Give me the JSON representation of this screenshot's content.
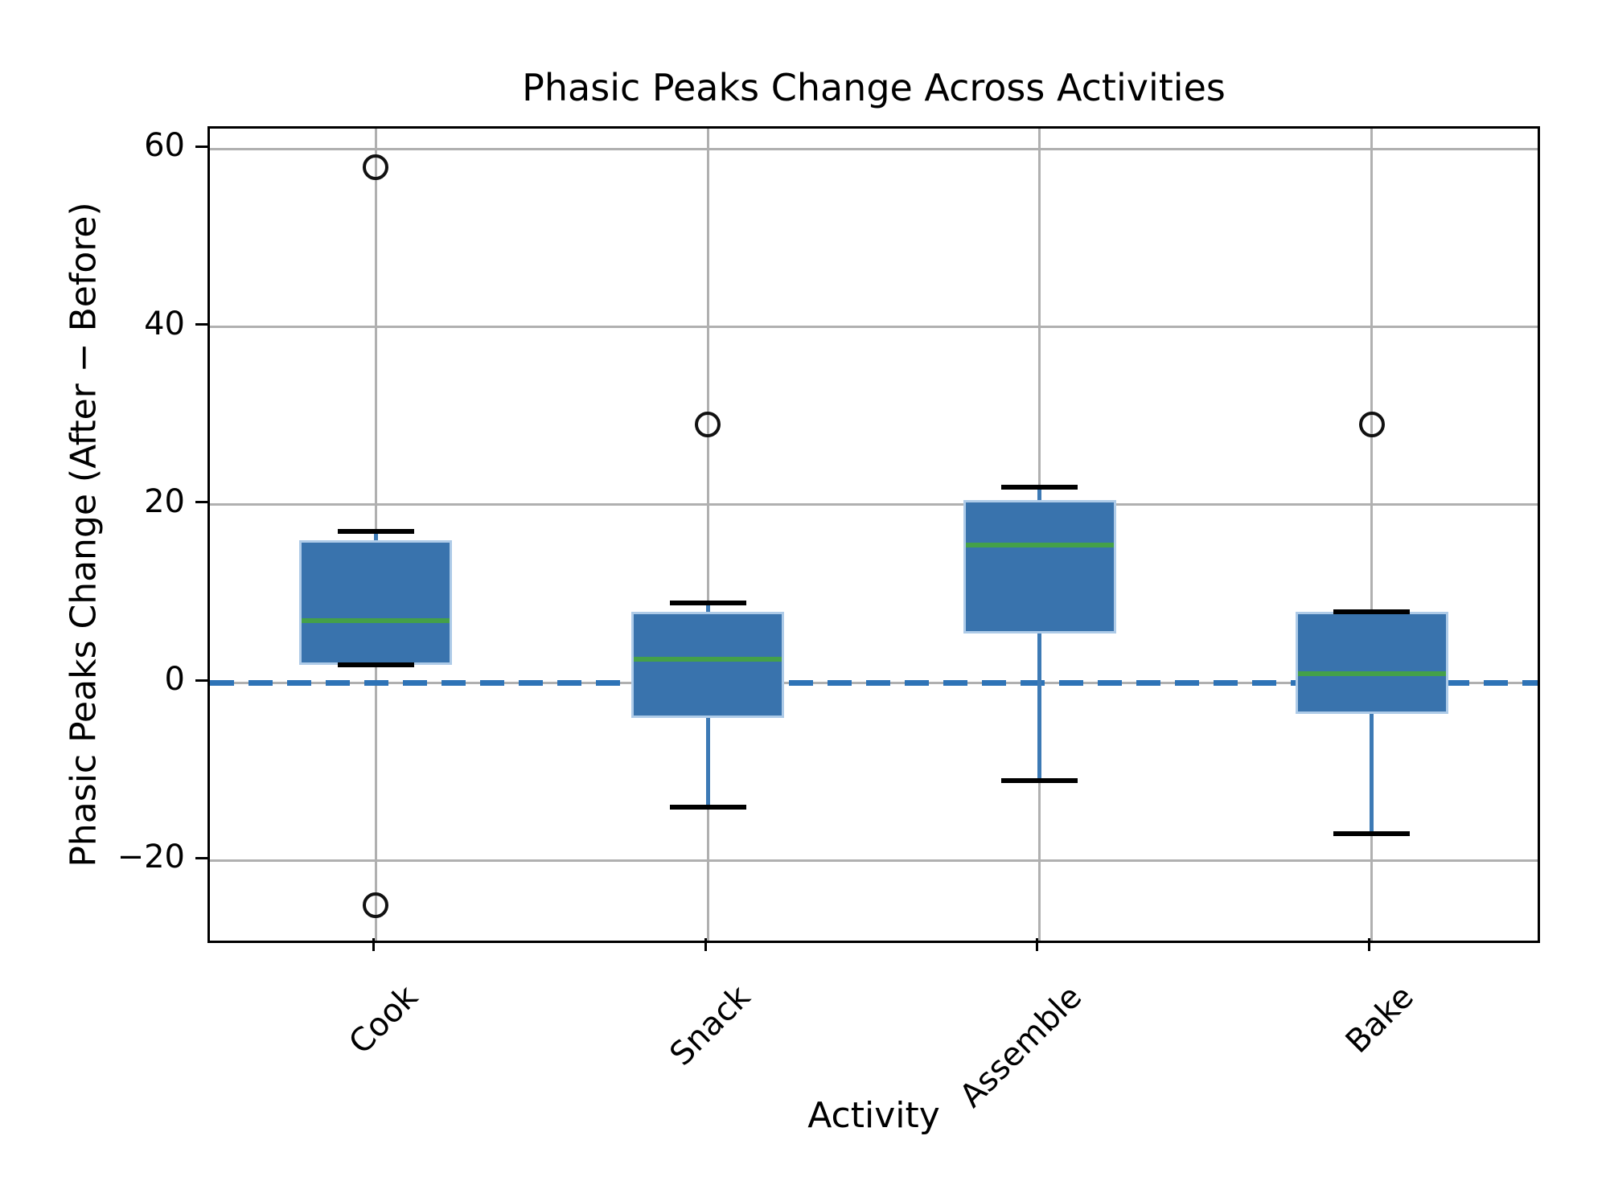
{
  "chart_data": {
    "type": "boxplot",
    "title": "Phasic Peaks Change Across Activities",
    "xlabel": "Activity",
    "ylabel": "Phasic Peaks Change (After − Before)",
    "categories": [
      "Cook",
      "Snack",
      "Assemble",
      "Bake"
    ],
    "ylim": [
      -29,
      62.3
    ],
    "yticks": [
      60,
      40,
      20,
      0,
      -20
    ],
    "ytick_labels": [
      "60",
      "40",
      "20",
      "0",
      "−20"
    ],
    "grid": true,
    "legend": "none",
    "zero_reference_line": {
      "y": 0,
      "style": "dashed",
      "color": "#2e73b6"
    },
    "series": [
      {
        "category": "Cook",
        "whisker_low": 2,
        "q1": 2,
        "median": 7,
        "q3": 16,
        "whisker_high": 17,
        "outliers": [
          58,
          -25
        ]
      },
      {
        "category": "Snack",
        "whisker_low": -14,
        "q1": -4,
        "median": 2.6,
        "q3": 8,
        "whisker_high": 9,
        "outliers": [
          29
        ]
      },
      {
        "category": "Assemble",
        "whisker_low": -11,
        "q1": 5.5,
        "median": 15.5,
        "q3": 20.5,
        "whisker_high": 22,
        "outliers": []
      },
      {
        "category": "Bake",
        "whisker_low": -17,
        "q1": -3.5,
        "median": 1,
        "q3": 8,
        "whisker_high": 8,
        "outliers": [
          29
        ]
      }
    ],
    "colors": {
      "box_fill": "#3973ad",
      "box_edge": "#aecbe8",
      "median": "#44a049",
      "whisker": "#3d7ab5",
      "cap": "#000000",
      "outlier_edge": "#111111",
      "grid": "#b0b0b0",
      "spine": "#000000",
      "zero_line": "#2e73b6",
      "text": "#000000"
    }
  }
}
